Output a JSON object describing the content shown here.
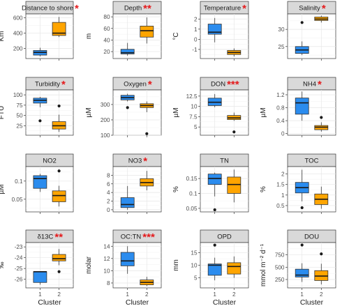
{
  "colors": {
    "cluster_1": "#2b8cee",
    "cluster_2": "#ffa500",
    "significance": "#e41a1c"
  },
  "chart_data": [
    {
      "type": "box",
      "title": "Distance to shore",
      "significance": "*",
      "ylabel": "Km",
      "ylim": [
        70,
        650
      ],
      "yticks": [
        200,
        400,
        600
      ],
      "x": [
        "1",
        "2"
      ],
      "xlabel": "Cluster",
      "series": [
        {
          "category": "1",
          "min": 100,
          "q1": 115,
          "median": 150,
          "q3": 175,
          "max": 210,
          "outliers": []
        },
        {
          "category": "2",
          "min": 350,
          "q1": 370,
          "median": 400,
          "q3": 540,
          "max": 610,
          "outliers": []
        }
      ]
    },
    {
      "type": "box",
      "title": "Depth",
      "significance": "**",
      "ylabel": "m",
      "ylim": [
        8,
        85
      ],
      "yticks": [
        20,
        40,
        60,
        80
      ],
      "x": [
        "1",
        "2"
      ],
      "xlabel": "Cluster",
      "series": [
        {
          "category": "1",
          "min": 13,
          "q1": 16,
          "median": 18,
          "q3": 24,
          "max": 35,
          "outliers": []
        },
        {
          "category": "2",
          "min": 34,
          "q1": 45,
          "median": 56,
          "q3": 64,
          "max": 79,
          "outliers": []
        }
      ]
    },
    {
      "type": "box",
      "title": "Temperature",
      "significance": "*",
      "ylabel": "°C",
      "ylim": [
        -1.9,
        2.5
      ],
      "yticks": [
        -1,
        0,
        1,
        2
      ],
      "x": [
        "1",
        "2"
      ],
      "xlabel": "Cluster",
      "series": [
        {
          "category": "1",
          "min": -0.3,
          "q1": 0.5,
          "median": 0.7,
          "q3": 1.5,
          "max": 2.1,
          "outliers": []
        },
        {
          "category": "2",
          "min": -1.7,
          "q1": -1.5,
          "median": -1.3,
          "q3": -1.1,
          "max": -0.9,
          "outliers": []
        }
      ]
    },
    {
      "type": "box",
      "title": "Salinity",
      "significance": "*",
      "ylabel": "",
      "ylim": [
        21.5,
        34.5
      ],
      "yticks": [
        25,
        30
      ],
      "x": [
        "1",
        "2"
      ],
      "xlabel": "Cluster",
      "series": [
        {
          "category": "1",
          "min": 22.5,
          "q1": 23,
          "median": 24,
          "q3": 25,
          "max": 26.5,
          "outliers": [
            32
          ]
        },
        {
          "category": "2",
          "min": 32,
          "q1": 32.6,
          "median": 33,
          "q3": 33.6,
          "max": 34,
          "outliers": []
        }
      ]
    },
    {
      "type": "box",
      "title": "Turbidity",
      "significance": "*",
      "ylabel": "FTU",
      "ylim": [
        2,
        112
      ],
      "yticks": [
        25,
        50,
        75,
        100
      ],
      "x": [
        "1",
        "2"
      ],
      "xlabel": "Cluster",
      "series": [
        {
          "category": "1",
          "min": 70,
          "q1": 80,
          "median": 87,
          "q3": 92,
          "max": 95,
          "outliers": [
            37
          ]
        },
        {
          "category": "2",
          "min": 10,
          "q1": 17,
          "median": 25,
          "q3": 35,
          "max": 52,
          "outliers": [
            73
          ]
        }
      ]
    },
    {
      "type": "box",
      "title": "Oxygen",
      "significance": "*",
      "ylabel": "µM",
      "ylim": [
        100,
        395
      ],
      "yticks": [
        100,
        200,
        300
      ],
      "x": [
        "1",
        "2"
      ],
      "xlabel": "Cluster",
      "series": [
        {
          "category": "1",
          "min": 320,
          "q1": 330,
          "median": 345,
          "q3": 360,
          "max": 370,
          "outliers": [
            280
          ]
        },
        {
          "category": "2",
          "min": 250,
          "q1": 280,
          "median": 293,
          "q3": 305,
          "max": 320,
          "outliers": [
            110
          ]
        }
      ]
    },
    {
      "type": "box",
      "title": "DON",
      "significance": "***",
      "ylabel": "µM",
      "ylim": [
        3,
        14
      ],
      "yticks": [
        5,
        7.5,
        10,
        12.5
      ],
      "x": [
        "1",
        "2"
      ],
      "xlabel": "Cluster",
      "series": [
        {
          "category": "1",
          "min": 9.8,
          "q1": 10.2,
          "median": 11,
          "q3": 12,
          "max": 13,
          "outliers": []
        },
        {
          "category": "2",
          "min": 6.5,
          "q1": 6.8,
          "median": 7.2,
          "q3": 7.8,
          "max": 8.5,
          "outliers": [
            3.8
          ]
        }
      ]
    },
    {
      "type": "box",
      "title": "NH4",
      "significance": "*",
      "ylabel": "µM",
      "ylim": [
        -0.05,
        1.35
      ],
      "yticks": [
        0,
        0.4,
        0.8,
        1.2
      ],
      "x": [
        "1",
        "2"
      ],
      "xlabel": "Cluster",
      "series": [
        {
          "category": "1",
          "min": 0.4,
          "q1": 0.6,
          "median": 0.95,
          "q3": 1.1,
          "max": 1.3,
          "outliers": []
        },
        {
          "category": "2",
          "min": 0.06,
          "q1": 0.12,
          "median": 0.2,
          "q3": 0.25,
          "max": 0.35,
          "outliers": [
            0.5
          ]
        }
      ]
    },
    {
      "type": "box",
      "title": "NO2",
      "significance": "",
      "ylabel": "µM",
      "ylim": [
        0.015,
        0.14
      ],
      "yticks": [
        0.05,
        0.1
      ],
      "x": [
        "1",
        "2"
      ],
      "xlabel": "Cluster",
      "series": [
        {
          "category": "1",
          "min": 0.07,
          "q1": 0.08,
          "median": 0.107,
          "q3": 0.115,
          "max": 0.12,
          "outliers": []
        },
        {
          "category": "2",
          "min": 0.03,
          "q1": 0.043,
          "median": 0.06,
          "q3": 0.073,
          "max": 0.087,
          "outliers": [
            0.128
          ]
        }
      ]
    },
    {
      "type": "box",
      "title": "NO3",
      "significance": "*",
      "ylabel": "",
      "ylim": [
        -0.5,
        10
      ],
      "yticks": [
        0,
        2,
        4,
        6,
        8
      ],
      "x": [
        "1",
        "2"
      ],
      "xlabel": "Cluster",
      "series": [
        {
          "category": "1",
          "min": 0,
          "q1": 0.5,
          "median": 1.2,
          "q3": 2.8,
          "max": 5.5,
          "outliers": []
        },
        {
          "category": "2",
          "min": 4.5,
          "q1": 5.5,
          "median": 6.3,
          "q3": 7.2,
          "max": 9,
          "outliers": []
        }
      ]
    },
    {
      "type": "box",
      "title": "TN",
      "significance": "",
      "ylabel": "%",
      "ylim": [
        0.038,
        0.19
      ],
      "yticks": [
        0.05,
        0.1,
        0.15
      ],
      "x": [
        "1",
        "2"
      ],
      "xlabel": "Cluster",
      "series": [
        {
          "category": "1",
          "min": 0.09,
          "q1": 0.13,
          "median": 0.15,
          "q3": 0.165,
          "max": 0.17,
          "outliers": [
            0.045
          ]
        },
        {
          "category": "2",
          "min": 0.07,
          "q1": 0.1,
          "median": 0.13,
          "q3": 0.155,
          "max": 0.18,
          "outliers": []
        }
      ]
    },
    {
      "type": "box",
      "title": "TOC",
      "significance": "",
      "ylabel": "%",
      "ylim": [
        0.2,
        2.35
      ],
      "yticks": [
        0.5,
        1.0,
        1.5,
        2.0
      ],
      "x": [
        "1",
        "2"
      ],
      "xlabel": "Cluster",
      "series": [
        {
          "category": "1",
          "min": 0.7,
          "q1": 1.1,
          "median": 1.35,
          "q3": 1.6,
          "max": 2.2,
          "outliers": [
            0.4
          ]
        },
        {
          "category": "2",
          "min": 0.35,
          "q1": 0.55,
          "median": 0.8,
          "q3": 1.05,
          "max": 1.4,
          "outliers": []
        }
      ]
    },
    {
      "type": "box",
      "title": "δ13C",
      "significance": "**",
      "ylabel": "‰",
      "ylim": [
        -26.8,
        -22.6
      ],
      "yticks": [
        -26,
        -25,
        -24,
        -23
      ],
      "x": [
        "1",
        "2"
      ],
      "xlabel": "Cluster",
      "series": [
        {
          "category": "1",
          "min": -26.5,
          "q1": -26.3,
          "median": -25.3,
          "q3": -25.3,
          "max": -25.3,
          "outliers": []
        },
        {
          "category": "2",
          "min": -24.7,
          "q1": -24.3,
          "median": -24.1,
          "q3": -23.7,
          "max": -23.2,
          "outliers": [
            -25.3
          ]
        }
      ]
    },
    {
      "type": "box",
      "title": "OC:TN",
      "significance": "***",
      "ylabel": "molar",
      "ylim": [
        7.2,
        14.6
      ],
      "yticks": [
        8,
        10,
        12,
        14
      ],
      "x": [
        "1",
        "2"
      ],
      "xlabel": "Cluster",
      "series": [
        {
          "category": "1",
          "min": 9.5,
          "q1": 10.8,
          "median": 11.6,
          "q3": 13,
          "max": 14,
          "outliers": []
        },
        {
          "category": "2",
          "min": 7.5,
          "q1": 7.7,
          "median": 8.1,
          "q3": 8.5,
          "max": 9,
          "outliers": []
        }
      ]
    },
    {
      "type": "box",
      "title": "OPD",
      "significance": "",
      "ylabel": "mm",
      "ylim": [
        1,
        19
      ],
      "yticks": [
        5,
        10,
        15
      ],
      "x": [
        "1",
        "2"
      ],
      "xlabel": "Cluster",
      "series": [
        {
          "category": "1",
          "min": 4,
          "q1": 6,
          "median": 10,
          "q3": 10.5,
          "max": 13,
          "outliers": [
            18
          ]
        },
        {
          "category": "2",
          "min": 5,
          "q1": 6.5,
          "median": 9.5,
          "q3": 11,
          "max": 13.5,
          "outliers": []
        }
      ]
    },
    {
      "type": "box",
      "title": "DOU",
      "significance": "",
      "ylabel": "mmol m⁻² d⁻¹",
      "ylim": [
        80,
        1000
      ],
      "yticks": [
        250,
        500,
        750
      ],
      "x": [
        "1",
        "2"
      ],
      "xlabel": "Cluster",
      "series": [
        {
          "category": "1",
          "min": 200,
          "q1": 300,
          "median": 340,
          "q3": 460,
          "max": 580,
          "outliers": [
            950
          ]
        },
        {
          "category": "2",
          "min": 150,
          "q1": 230,
          "median": 320,
          "q3": 430,
          "max": 570,
          "outliers": [
            770
          ]
        }
      ]
    }
  ]
}
